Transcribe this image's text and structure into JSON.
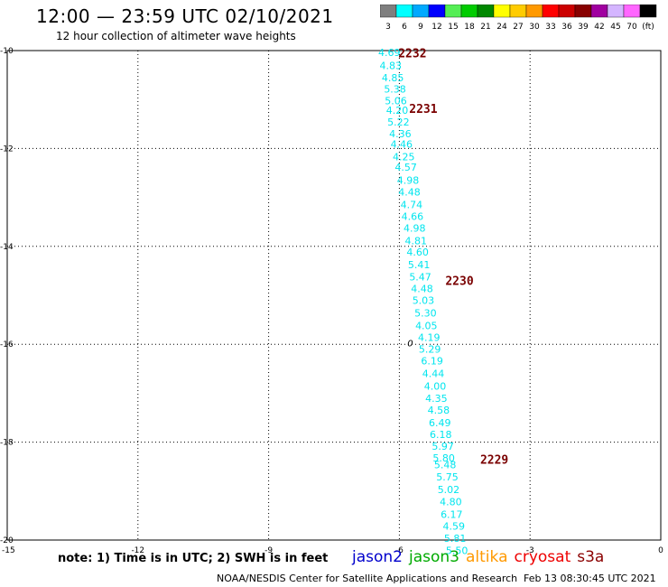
{
  "header": {
    "title": "12:00 — 23:59 UTC 02/10/2021",
    "subtitle": "12 hour collection of altimeter wave heights"
  },
  "colorbar": {
    "colors": [
      "#7f7f7f",
      "#00ffff",
      "#00a9ff",
      "#0000ff",
      "#55ee55",
      "#00cc00",
      "#008800",
      "#ffff00",
      "#ffcc00",
      "#ff9900",
      "#ff0000",
      "#cc0000",
      "#880000",
      "#a000a0",
      "#d4b5ff",
      "#ff66ff",
      "#000000"
    ],
    "labels": [
      "3",
      "6",
      "9",
      "12",
      "15",
      "18",
      "21",
      "24",
      "27",
      "30",
      "33",
      "36",
      "39",
      "42",
      "45",
      "70",
      "(ft)"
    ]
  },
  "map": {
    "lon_ticks": [
      "-15",
      "-12",
      "-9",
      "-6",
      "-3",
      "0"
    ],
    "lat_ticks": [
      "-10",
      "-12",
      "-14",
      "-16",
      "-18",
      "-20"
    ],
    "track_color": "#00e5ee",
    "time_color": "#7a0000",
    "wave_heights": [
      {
        "lon": -6.23,
        "lat": -10.04,
        "label": "4.69"
      },
      {
        "lon": -6.2,
        "lat": -10.3,
        "label": "4.83"
      },
      {
        "lon": -6.15,
        "lat": -10.55,
        "label": "4.85"
      },
      {
        "lon": -6.1,
        "lat": -10.78,
        "label": "5.38"
      },
      {
        "lon": -6.08,
        "lat": -11.02,
        "label": "5.06"
      },
      {
        "lon": -6.05,
        "lat": -11.22,
        "label": "4.20"
      },
      {
        "lon": -6.02,
        "lat": -11.46,
        "label": "5.22"
      },
      {
        "lon": -5.98,
        "lat": -11.7,
        "label": "4.36"
      },
      {
        "lon": -5.95,
        "lat": -11.91,
        "label": "4.46"
      },
      {
        "lon": -5.9,
        "lat": -12.17,
        "label": "4.25"
      },
      {
        "lon": -5.85,
        "lat": -12.38,
        "label": "4.57"
      },
      {
        "lon": -5.8,
        "lat": -12.65,
        "label": "4.98"
      },
      {
        "lon": -5.77,
        "lat": -12.89,
        "label": "4.48"
      },
      {
        "lon": -5.72,
        "lat": -13.15,
        "label": "4.74"
      },
      {
        "lon": -5.7,
        "lat": -13.39,
        "label": "4.66"
      },
      {
        "lon": -5.65,
        "lat": -13.63,
        "label": "4.98"
      },
      {
        "lon": -5.62,
        "lat": -13.88,
        "label": "4.81"
      },
      {
        "lon": -5.58,
        "lat": -14.11,
        "label": "4.60"
      },
      {
        "lon": -5.55,
        "lat": -14.37,
        "label": "5.41"
      },
      {
        "lon": -5.52,
        "lat": -14.62,
        "label": "5.47"
      },
      {
        "lon": -5.48,
        "lat": -14.86,
        "label": "4.48"
      },
      {
        "lon": -5.45,
        "lat": -15.1,
        "label": "5.03"
      },
      {
        "lon": -5.4,
        "lat": -15.36,
        "label": "5.30"
      },
      {
        "lon": -5.38,
        "lat": -15.62,
        "label": "4.05"
      },
      {
        "lon": -5.32,
        "lat": -15.86,
        "label": "4.19"
      },
      {
        "lon": -5.3,
        "lat": -16.1,
        "label": "5.29"
      },
      {
        "lon": -5.25,
        "lat": -16.34,
        "label": "6.19"
      },
      {
        "lon": -5.22,
        "lat": -16.6,
        "label": "4.44"
      },
      {
        "lon": -5.18,
        "lat": -16.85,
        "label": "4.00"
      },
      {
        "lon": -5.15,
        "lat": -17.1,
        "label": "4.35"
      },
      {
        "lon": -5.1,
        "lat": -17.34,
        "label": "4.58"
      },
      {
        "lon": -5.07,
        "lat": -17.6,
        "label": "6.49"
      },
      {
        "lon": -5.05,
        "lat": -17.84,
        "label": "6.18"
      },
      {
        "lon": -5.0,
        "lat": -18.08,
        "label": "5.97"
      },
      {
        "lon": -4.98,
        "lat": -18.32,
        "label": "5.80"
      },
      {
        "lon": -4.95,
        "lat": -18.46,
        "label": "5.48"
      },
      {
        "lon": -4.9,
        "lat": -18.71,
        "label": "5.75"
      },
      {
        "lon": -4.87,
        "lat": -18.97,
        "label": "5.02"
      },
      {
        "lon": -4.82,
        "lat": -19.22,
        "label": "4.80"
      },
      {
        "lon": -4.8,
        "lat": -19.47,
        "label": "6.17"
      },
      {
        "lon": -4.75,
        "lat": -19.71,
        "label": "4.59"
      },
      {
        "lon": -4.72,
        "lat": -19.96,
        "label": "5.81"
      },
      {
        "lon": -4.68,
        "lat": -20.21,
        "label": "5.50"
      }
    ],
    "time_labels": [
      {
        "lon": -5.7,
        "lat": -10.05,
        "label": "2232"
      },
      {
        "lon": -5.45,
        "lat": -11.18,
        "label": "2231"
      },
      {
        "lon": -4.62,
        "lat": -14.7,
        "label": "2230"
      },
      {
        "lon": -3.82,
        "lat": -18.35,
        "label": "2229"
      }
    ],
    "marker": {
      "lon": -5.75,
      "lat": -15.99,
      "label": "0"
    }
  },
  "footer": {
    "note": "note:  1) Time is in UTC;  2) SWH is in feet",
    "satellites": [
      {
        "name": "jason2",
        "color": "#0000cc"
      },
      {
        "name": "jason3",
        "color": "#00aa00"
      },
      {
        "name": "altika",
        "color": "#ff9900"
      },
      {
        "name": "cryosat",
        "color": "#ee0000"
      },
      {
        "name": "s3a",
        "color": "#8b0000"
      }
    ],
    "credit": "NOAA/NESDIS Center for Satellite Applications and Research",
    "timestamp": "Feb 13 08:30:45 UTC 2021"
  }
}
